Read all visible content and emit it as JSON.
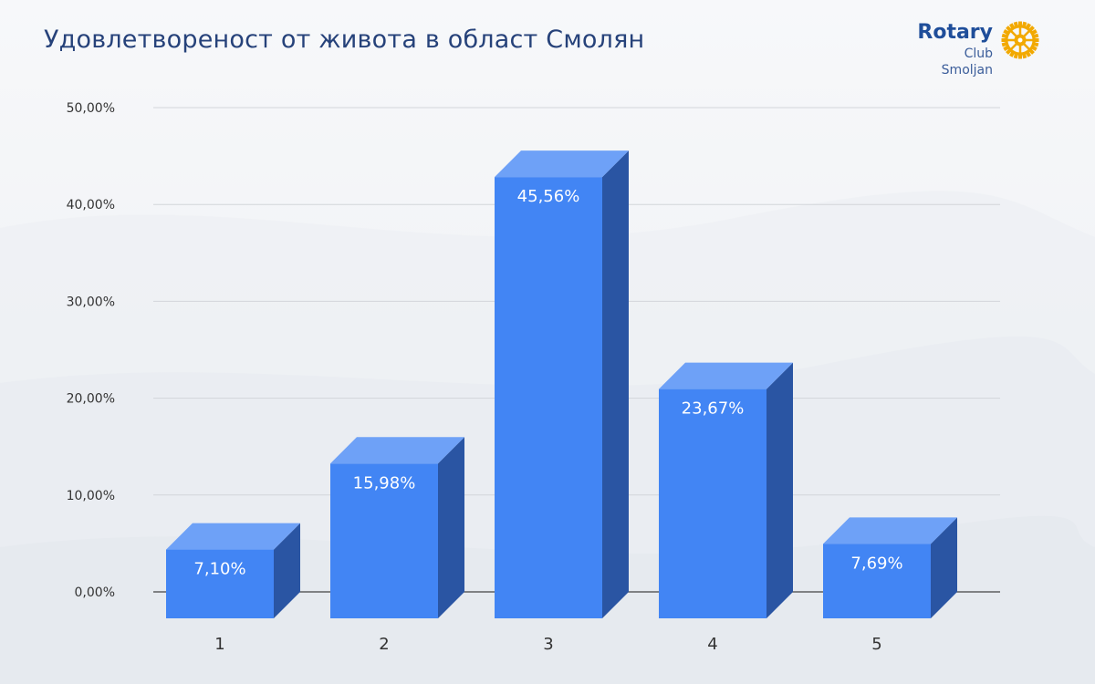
{
  "page": {
    "title": "Удовлетвореност от живота в област Смолян"
  },
  "logo": {
    "name": "Rotary",
    "subtitle": "Club Smoljan",
    "icon": "rotary-wheel-icon",
    "color": "#f2a900"
  },
  "chart_data": {
    "type": "bar",
    "style": "3d",
    "categories": [
      "1",
      "2",
      "3",
      "4",
      "5"
    ],
    "values": [
      7.1,
      15.98,
      45.56,
      23.67,
      7.69
    ],
    "value_labels": [
      "7,10%",
      "15,98%",
      "45,56%",
      "23,67%",
      "7,69%"
    ],
    "yticks": [
      "0,00%",
      "10,00%",
      "20,00%",
      "30,00%",
      "40,00%",
      "50,00%"
    ],
    "ylim": [
      0,
      50
    ],
    "grid": true,
    "colors": {
      "front": "#4285f4",
      "top": "#6ea1f7",
      "side": "#2a55a3"
    }
  }
}
